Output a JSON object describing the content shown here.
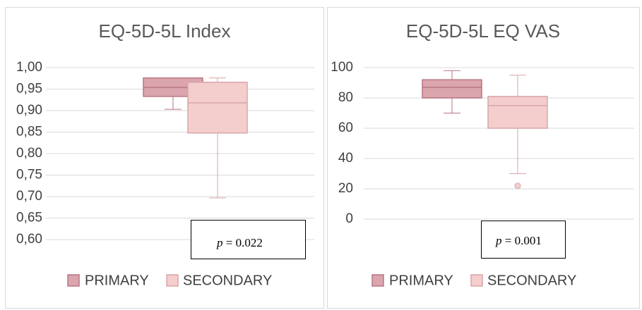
{
  "chart_data": [
    {
      "type": "box",
      "title": "EQ-5D-5L Index",
      "ylim": [
        0.6,
        1.0
      ],
      "yticks": [
        {
          "value": 0.6,
          "label": "0,60"
        },
        {
          "value": 0.65,
          "label": "0,65"
        },
        {
          "value": 0.7,
          "label": "0,70"
        },
        {
          "value": 0.75,
          "label": "0,75"
        },
        {
          "value": 0.8,
          "label": "0,80"
        },
        {
          "value": 0.85,
          "label": "0,85"
        },
        {
          "value": 0.9,
          "label": "0,90"
        },
        {
          "value": 0.95,
          "label": "0,95"
        },
        {
          "value": 1.0,
          "label": "1,00"
        }
      ],
      "grid": true,
      "series": [
        {
          "name": "PRIMARY",
          "color": "#dba5ae",
          "min": 0.903,
          "q1": 0.933,
          "median": 0.954,
          "q3": 0.976,
          "max": 0.976,
          "outliers": []
        },
        {
          "name": "SECONDARY",
          "color": "#f4cdcd",
          "min": 0.697,
          "q1": 0.848,
          "median": 0.918,
          "q3": 0.966,
          "max": 0.976,
          "outliers": []
        }
      ],
      "annotation": "p = 0.022",
      "legend": "bottom"
    },
    {
      "type": "box",
      "title": "EQ-5D-5L EQ VAS",
      "ylim": [
        0,
        100
      ],
      "yticks": [
        0,
        20,
        40,
        60,
        80,
        100
      ],
      "grid": true,
      "series": [
        {
          "name": "PRIMARY",
          "color": "#dba5ae",
          "min": 70,
          "q1": 80,
          "median": 87,
          "q3": 92,
          "max": 98,
          "outliers": []
        },
        {
          "name": "SECONDARY",
          "color": "#f4cdcd",
          "min": 30,
          "q1": 60,
          "median": 75,
          "q3": 81,
          "max": 95,
          "outliers": [
            22
          ]
        }
      ],
      "annotation": "p = 0.001",
      "legend": "bottom"
    }
  ]
}
